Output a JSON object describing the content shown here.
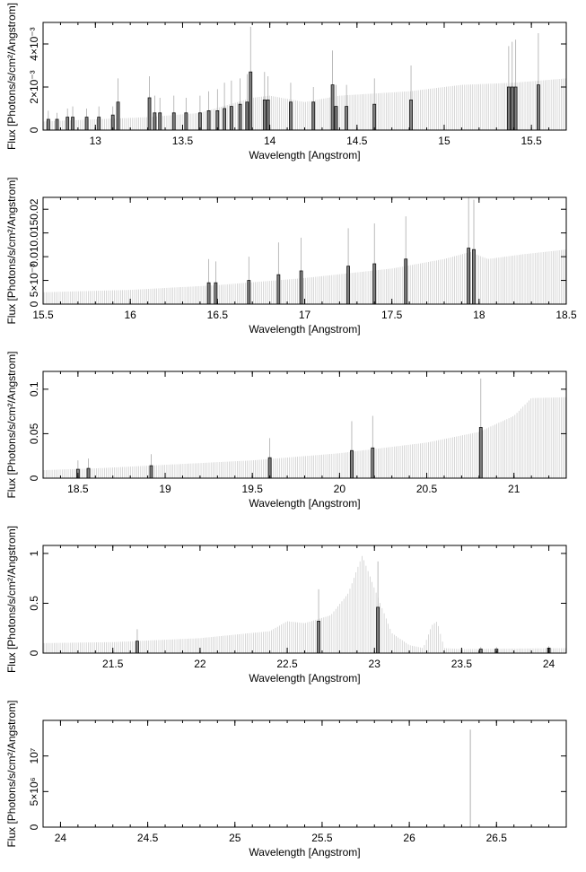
{
  "chart_data": [
    {
      "type": "bar",
      "xlabel": "Wavelength [Angstrom]",
      "ylabel": "Flux [Photons/s/cm²/Angstrom]",
      "xlim": [
        12.7,
        15.7
      ],
      "ylim": [
        0,
        0.005
      ],
      "x_ticks": [
        {
          "v": 13,
          "label": "13"
        },
        {
          "v": 13.5,
          "label": "13.5"
        },
        {
          "v": 14,
          "label": "14"
        },
        {
          "v": 14.5,
          "label": "14.5"
        },
        {
          "v": 15,
          "label": "15"
        },
        {
          "v": 15.5,
          "label": "15.5"
        }
      ],
      "y_ticks": [
        {
          "v": 0,
          "label": "0"
        },
        {
          "v": 0.002,
          "label": "2×10⁻³"
        },
        {
          "v": 0.004,
          "label": "4×10⁻³"
        }
      ],
      "continuum": [
        [
          12.7,
          0.0004
        ],
        [
          13.0,
          0.0005
        ],
        [
          13.3,
          0.0006
        ],
        [
          13.6,
          0.0008
        ],
        [
          13.9,
          0.0015
        ],
        [
          14.0,
          0.0016
        ],
        [
          14.2,
          0.0013
        ],
        [
          14.4,
          0.0016
        ],
        [
          14.8,
          0.0018
        ],
        [
          15.1,
          0.0021
        ],
        [
          15.4,
          0.0022
        ],
        [
          15.7,
          0.0024
        ]
      ],
      "lines": [
        [
          12.73,
          0.0005,
          0.0009
        ],
        [
          12.78,
          0.0005,
          0.0008
        ],
        [
          12.84,
          0.0006,
          0.001
        ],
        [
          12.87,
          0.0006,
          0.0011
        ],
        [
          12.95,
          0.0006,
          0.001
        ],
        [
          13.02,
          0.0006,
          0.0011
        ],
        [
          13.1,
          0.0007,
          0.0011
        ],
        [
          13.13,
          0.0013,
          0.0024
        ],
        [
          13.31,
          0.0015,
          0.0025
        ],
        [
          13.34,
          0.0008,
          0.0016
        ],
        [
          13.37,
          0.0008,
          0.0015
        ],
        [
          13.45,
          0.0008,
          0.0016
        ],
        [
          13.52,
          0.0008,
          0.0015
        ],
        [
          13.6,
          0.0008,
          0.0016
        ],
        [
          13.65,
          0.0009,
          0.0018
        ],
        [
          13.7,
          0.0009,
          0.0019
        ],
        [
          13.74,
          0.001,
          0.0022
        ],
        [
          13.78,
          0.0011,
          0.0023
        ],
        [
          13.83,
          0.0012,
          0.0024
        ],
        [
          13.87,
          0.0013,
          0.0026
        ],
        [
          13.89,
          0.0027,
          0.0048
        ],
        [
          13.97,
          0.0014,
          0.0027
        ],
        [
          13.99,
          0.0014,
          0.0025
        ],
        [
          14.12,
          0.0013,
          0.0022
        ],
        [
          14.25,
          0.0013,
          0.002
        ],
        [
          14.36,
          0.0021,
          0.0037
        ],
        [
          14.38,
          0.0011,
          0.0021
        ],
        [
          14.44,
          0.0011,
          0.0021
        ],
        [
          14.6,
          0.0012,
          0.0024
        ],
        [
          14.81,
          0.0014,
          0.003
        ],
        [
          15.37,
          0.002,
          0.0039
        ],
        [
          15.39,
          0.002,
          0.0041
        ],
        [
          15.41,
          0.002,
          0.0042
        ],
        [
          15.54,
          0.0021,
          0.0045
        ]
      ]
    },
    {
      "type": "bar",
      "xlabel": "Wavelength [Angstrom]",
      "ylabel": "Flux [Photons/s/cm²/Angstrom]",
      "xlim": [
        15.5,
        18.5
      ],
      "ylim": [
        0,
        0.0225
      ],
      "x_ticks": [
        {
          "v": 15.5,
          "label": "15.5"
        },
        {
          "v": 16,
          "label": "16"
        },
        {
          "v": 16.5,
          "label": "16.5"
        },
        {
          "v": 17,
          "label": "17"
        },
        {
          "v": 17.5,
          "label": "17.5"
        },
        {
          "v": 18,
          "label": "18"
        },
        {
          "v": 18.5,
          "label": "18.5"
        }
      ],
      "y_ticks": [
        {
          "v": 0,
          "label": "0"
        },
        {
          "v": 0.005,
          "label": "5×10⁻³"
        },
        {
          "v": 0.01,
          "label": "0.01"
        },
        {
          "v": 0.015,
          "label": "0.015"
        },
        {
          "v": 0.02,
          "label": "0.02"
        }
      ],
      "continuum": [
        [
          15.5,
          0.0025
        ],
        [
          16.0,
          0.003
        ],
        [
          16.5,
          0.004
        ],
        [
          17.0,
          0.0055
        ],
        [
          17.5,
          0.0075
        ],
        [
          17.8,
          0.0095
        ],
        [
          17.95,
          0.011
        ],
        [
          18.05,
          0.0095
        ],
        [
          18.25,
          0.0105
        ],
        [
          18.5,
          0.0115
        ]
      ],
      "lines": [
        [
          16.45,
          0.0045,
          0.0095
        ],
        [
          16.49,
          0.0045,
          0.009
        ],
        [
          16.68,
          0.005,
          0.01
        ],
        [
          16.85,
          0.0062,
          0.013
        ],
        [
          16.98,
          0.007,
          0.014
        ],
        [
          17.25,
          0.008,
          0.016
        ],
        [
          17.4,
          0.0085,
          0.017
        ],
        [
          17.58,
          0.0095,
          0.0185
        ],
        [
          17.94,
          0.0118,
          0.0225
        ],
        [
          17.97,
          0.0115,
          0.022
        ]
      ]
    },
    {
      "type": "bar",
      "xlabel": "Wavelength [Angstrom]",
      "ylabel": "Flux [Photons/s/cm²/Angstrom]",
      "xlim": [
        18.3,
        21.3
      ],
      "ylim": [
        0,
        0.12
      ],
      "x_ticks": [
        {
          "v": 18.5,
          "label": "18.5"
        },
        {
          "v": 19,
          "label": "19"
        },
        {
          "v": 19.5,
          "label": "19.5"
        },
        {
          "v": 20,
          "label": "20"
        },
        {
          "v": 20.5,
          "label": "20.5"
        },
        {
          "v": 21,
          "label": "21"
        }
      ],
      "y_ticks": [
        {
          "v": 0,
          "label": "0"
        },
        {
          "v": 0.05,
          "label": "0.05"
        },
        {
          "v": 0.1,
          "label": "0.1"
        }
      ],
      "continuum": [
        [
          18.3,
          0.009
        ],
        [
          18.6,
          0.011
        ],
        [
          19.0,
          0.015
        ],
        [
          19.5,
          0.02
        ],
        [
          20.0,
          0.028
        ],
        [
          20.5,
          0.04
        ],
        [
          20.8,
          0.052
        ],
        [
          21.0,
          0.07
        ],
        [
          21.1,
          0.09
        ],
        [
          21.3,
          0.091
        ]
      ],
      "lines": [
        [
          18.5,
          0.01,
          0.02
        ],
        [
          18.56,
          0.011,
          0.022
        ],
        [
          18.92,
          0.014,
          0.027
        ],
        [
          19.6,
          0.023,
          0.045
        ],
        [
          20.07,
          0.031,
          0.064
        ],
        [
          20.19,
          0.034,
          0.07
        ],
        [
          20.81,
          0.057,
          0.112
        ]
      ]
    },
    {
      "type": "bar",
      "xlabel": "Wavelength [Angstrom]",
      "ylabel": "Flux [Photons/s/cm²/Angstrom]",
      "xlim": [
        21.1,
        24.1
      ],
      "ylim": [
        0,
        1.08
      ],
      "x_ticks": [
        {
          "v": 21.5,
          "label": "21.5"
        },
        {
          "v": 22,
          "label": "22"
        },
        {
          "v": 22.5,
          "label": "22.5"
        },
        {
          "v": 23,
          "label": "23"
        },
        {
          "v": 23.5,
          "label": "23.5"
        },
        {
          "v": 24,
          "label": "24"
        }
      ],
      "y_ticks": [
        {
          "v": 0,
          "label": "0"
        },
        {
          "v": 0.5,
          "label": "0.5"
        },
        {
          "v": 1,
          "label": "1"
        }
      ],
      "continuum": [
        [
          21.1,
          0.1
        ],
        [
          21.5,
          0.11
        ],
        [
          22.0,
          0.15
        ],
        [
          22.4,
          0.22
        ],
        [
          22.5,
          0.32
        ],
        [
          22.6,
          0.3
        ],
        [
          22.75,
          0.38
        ],
        [
          22.85,
          0.6
        ],
        [
          22.93,
          0.98
        ],
        [
          23.0,
          0.65
        ],
        [
          23.1,
          0.2
        ],
        [
          23.2,
          0.08
        ],
        [
          23.28,
          0.05
        ],
        [
          23.33,
          0.28
        ],
        [
          23.36,
          0.32
        ],
        [
          23.4,
          0.05
        ],
        [
          23.5,
          0.04
        ],
        [
          24.1,
          0.05
        ]
      ],
      "lines": [
        [
          21.64,
          0.12,
          0.24
        ],
        [
          22.68,
          0.32,
          0.64
        ],
        [
          23.02,
          0.46,
          0.92
        ],
        [
          23.61,
          0.04,
          0.06
        ],
        [
          23.7,
          0.04,
          0.06
        ],
        [
          24.0,
          0.05,
          0.07
        ]
      ]
    },
    {
      "type": "bar",
      "xlabel": "Wavelength [Angstrom]",
      "ylabel": "Flux [Photons/s/cm²/Angstrom]",
      "xlim": [
        23.9,
        26.9
      ],
      "ylim": [
        0,
        15000000
      ],
      "x_ticks": [
        {
          "v": 24,
          "label": "24"
        },
        {
          "v": 24.5,
          "label": "24.5"
        },
        {
          "v": 25,
          "label": "25"
        },
        {
          "v": 25.5,
          "label": "25.5"
        },
        {
          "v": 26,
          "label": "26"
        },
        {
          "v": 26.5,
          "label": "26.5"
        }
      ],
      "y_ticks": [
        {
          "v": 0,
          "label": "0"
        },
        {
          "v": 5000000,
          "label": "5×10⁶"
        },
        {
          "v": 10000000,
          "label": "10⁷"
        }
      ],
      "continuum": [],
      "spikes": [
        [
          26.35,
          13700000
        ]
      ],
      "lines": []
    }
  ]
}
